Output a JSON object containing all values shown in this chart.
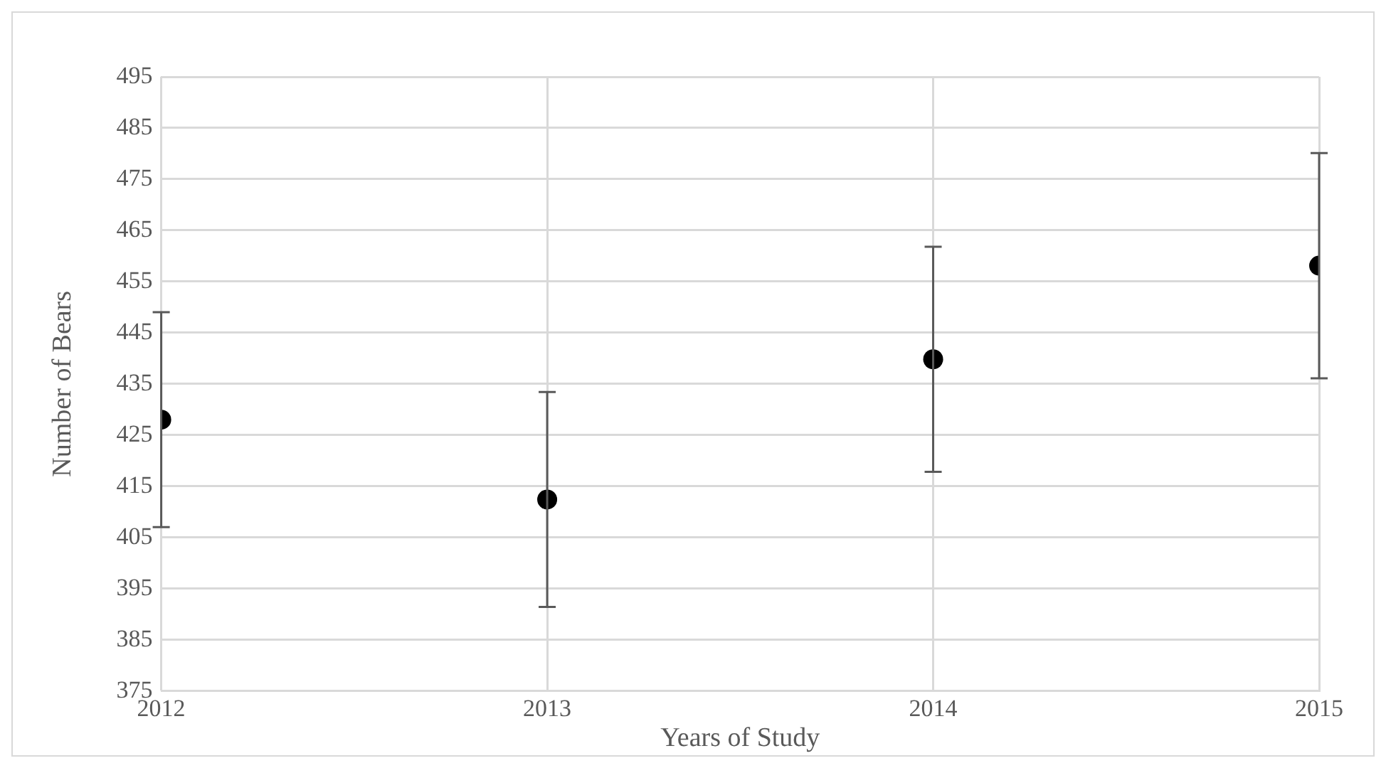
{
  "chart_data": {
    "type": "scatter",
    "xlabel": "Years of Study",
    "ylabel": "Number of Bears",
    "x": [
      2012,
      2013,
      2014,
      2015
    ],
    "series": [
      {
        "color": "#000000",
        "values": [
          428,
          412.4,
          439.8,
          458.1
        ],
        "errors": [
          21,
          21,
          22,
          22
        ]
      }
    ],
    "xlim": [
      2012,
      2015
    ],
    "xticks": [
      2012,
      2013,
      2014,
      2015
    ],
    "ylim": [
      375,
      495
    ],
    "yticks": [
      375,
      385,
      395,
      405,
      415,
      425,
      435,
      445,
      455,
      465,
      475,
      485,
      495
    ],
    "grid": true,
    "marker": "circle",
    "legend": false
  }
}
